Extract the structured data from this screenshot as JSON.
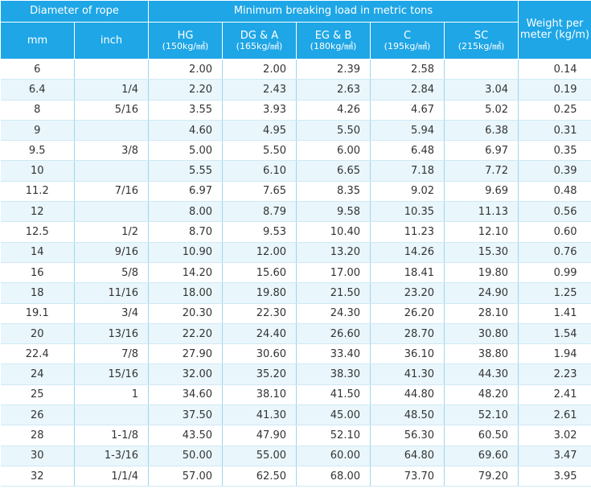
{
  "header": {
    "diameter": "Diameter of rope",
    "mbl": "Minimum breaking load in metric tons",
    "weight": "Weight per meter (kg/m)",
    "mm": "mm",
    "inch": "inch",
    "grades": [
      {
        "name": "HG",
        "strength": "(150kg/㎟)"
      },
      {
        "name": "DG & A",
        "strength": "(165kg/㎟)"
      },
      {
        "name": "EG & B",
        "strength": "(180kg/㎟)"
      },
      {
        "name": "C",
        "strength": "(195kg/㎟)"
      },
      {
        "name": "SC",
        "strength": "(215kg/㎟)"
      }
    ]
  },
  "rows": [
    {
      "mm": "6",
      "inch": "",
      "hg": "2.00",
      "dg": "2.00",
      "eg": "2.39",
      "c": "2.58",
      "sc": "",
      "wt": "0.14"
    },
    {
      "mm": "6.4",
      "inch": "1/4",
      "hg": "2.20",
      "dg": "2.43",
      "eg": "2.63",
      "c": "2.84",
      "sc": "3.04",
      "wt": "0.19"
    },
    {
      "mm": "8",
      "inch": "5/16",
      "hg": "3.55",
      "dg": "3.93",
      "eg": "4.26",
      "c": "4.67",
      "sc": "5.02",
      "wt": "0.25"
    },
    {
      "mm": "9",
      "inch": "",
      "hg": "4.60",
      "dg": "4.95",
      "eg": "5.50",
      "c": "5.94",
      "sc": "6.38",
      "wt": "0.31"
    },
    {
      "mm": "9.5",
      "inch": "3/8",
      "hg": "5.00",
      "dg": "5.50",
      "eg": "6.00",
      "c": "6.48",
      "sc": "6.97",
      "wt": "0.35"
    },
    {
      "mm": "10",
      "inch": "",
      "hg": "5.55",
      "dg": "6.10",
      "eg": "6.65",
      "c": "7.18",
      "sc": "7.72",
      "wt": "0.39"
    },
    {
      "mm": "11.2",
      "inch": "7/16",
      "hg": "6.97",
      "dg": "7.65",
      "eg": "8.35",
      "c": "9.02",
      "sc": "9.69",
      "wt": "0.48"
    },
    {
      "mm": "12",
      "inch": "",
      "hg": "8.00",
      "dg": "8.79",
      "eg": "9.58",
      "c": "10.35",
      "sc": "11.13",
      "wt": "0.56"
    },
    {
      "mm": "12.5",
      "inch": "1/2",
      "hg": "8.70",
      "dg": "9.53",
      "eg": "10.40",
      "c": "11.23",
      "sc": "12.10",
      "wt": "0.60"
    },
    {
      "mm": "14",
      "inch": "9/16",
      "hg": "10.90",
      "dg": "12.00",
      "eg": "13.20",
      "c": "14.26",
      "sc": "15.30",
      "wt": "0.76"
    },
    {
      "mm": "16",
      "inch": "5/8",
      "hg": "14.20",
      "dg": "15.60",
      "eg": "17.00",
      "c": "18.41",
      "sc": "19.80",
      "wt": "0.99"
    },
    {
      "mm": "18",
      "inch": "11/16",
      "hg": "18.00",
      "dg": "19.80",
      "eg": "21.50",
      "c": "23.20",
      "sc": "24.90",
      "wt": "1.25"
    },
    {
      "mm": "19.1",
      "inch": "3/4",
      "hg": "20.30",
      "dg": "22.30",
      "eg": "24.30",
      "c": "26.20",
      "sc": "28.10",
      "wt": "1.41"
    },
    {
      "mm": "20",
      "inch": "13/16",
      "hg": "22.20",
      "dg": "24.40",
      "eg": "26.60",
      "c": "28.70",
      "sc": "30.80",
      "wt": "1.54"
    },
    {
      "mm": "22.4",
      "inch": "7/8",
      "hg": "27.90",
      "dg": "30.60",
      "eg": "33.40",
      "c": "36.10",
      "sc": "38.80",
      "wt": "1.94"
    },
    {
      "mm": "24",
      "inch": "15/16",
      "hg": "32.00",
      "dg": "35.20",
      "eg": "38.30",
      "c": "41.30",
      "sc": "44.30",
      "wt": "2.23"
    },
    {
      "mm": "25",
      "inch": "1",
      "hg": "34.60",
      "dg": "38.10",
      "eg": "41.50",
      "c": "44.80",
      "sc": "48.20",
      "wt": "2.41"
    },
    {
      "mm": "26",
      "inch": "",
      "hg": "37.50",
      "dg": "41.30",
      "eg": "45.00",
      "c": "48.50",
      "sc": "52.10",
      "wt": "2.61"
    },
    {
      "mm": "28",
      "inch": "1-1/8",
      "hg": "43.50",
      "dg": "47.90",
      "eg": "52.10",
      "c": "56.30",
      "sc": "60.50",
      "wt": "3.02"
    },
    {
      "mm": "30",
      "inch": "1-3/16",
      "hg": "50.00",
      "dg": "55.00",
      "eg": "60.00",
      "c": "64.80",
      "sc": "69.60",
      "wt": "3.47"
    },
    {
      "mm": "32",
      "inch": "1/1/4",
      "hg": "57.00",
      "dg": "62.50",
      "eg": "68.00",
      "c": "73.70",
      "sc": "79.20",
      "wt": "3.95"
    }
  ]
}
